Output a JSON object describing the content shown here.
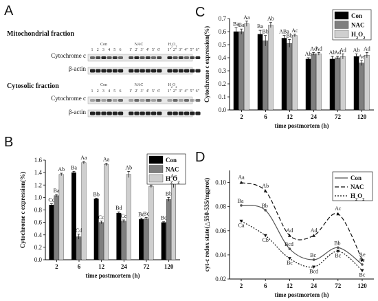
{
  "panels": {
    "a": "A",
    "b": "B",
    "c": "C",
    "d": "D"
  },
  "blot": {
    "mito_title": "Mitochondrial fraction",
    "cyto_title": "Cytosolic fraction",
    "groups": [
      "Con",
      "NAC",
      "H2O2"
    ],
    "lanes": [
      "1",
      "2",
      "3",
      "4",
      "5",
      "6",
      "1'",
      "2'",
      "3'",
      "4'",
      "5'",
      "6'",
      "1\"",
      "2\"",
      "3\"",
      "4\"",
      "5\"",
      "6\""
    ],
    "row_labels": [
      "Cytochrome c",
      "β-actin"
    ]
  },
  "chart_data": [
    {
      "id": "B",
      "type": "bar",
      "categories": [
        "2",
        "6",
        "12",
        "24",
        "72",
        "120"
      ],
      "xlabel": "time postmortem (h)",
      "ylabel": "Cytochrome c expression(%)",
      "ylim": [
        0,
        1.6
      ],
      "yticks": [
        "0.0",
        "0.2",
        "0.4",
        "0.6",
        "0.8",
        "1.0",
        "1.2",
        "1.4",
        "1.6"
      ],
      "legend": "top-right",
      "series": [
        {
          "name": "Con",
          "color": "#000000",
          "values": [
            0.88,
            1.4,
            0.98,
            0.75,
            0.65,
            0.6
          ],
          "err": [
            0.02,
            0.02,
            0.01,
            0.02,
            0.02,
            0.01
          ],
          "labels": [
            "Cc",
            "Ba",
            "Bb",
            "Bd",
            "Bc",
            "Bc"
          ]
        },
        {
          "name": "NAC",
          "color": "#7f7f7f",
          "values": [
            1.03,
            0.37,
            0.6,
            0.62,
            0.66,
            0.97
          ],
          "err": [
            0.02,
            0.04,
            0.02,
            0.02,
            0.02,
            0.03
          ],
          "labels": [
            "Ba",
            "Cd",
            "Cc",
            "Cc",
            "Bc",
            "Bb"
          ]
        },
        {
          "name": "H2O2",
          "color": "#cfcfcf",
          "values": [
            1.37,
            1.56,
            1.53,
            1.37,
            1.18,
            1.22
          ],
          "err": [
            0.02,
            0.02,
            0.02,
            0.05,
            0.02,
            0.06
          ],
          "labels": [
            "Ab",
            "Aa",
            "Aa",
            "Ab",
            "",
            ""
          ]
        }
      ],
      "extra_labels": [
        "Ac"
      ]
    },
    {
      "id": "C",
      "type": "bar",
      "categories": [
        "2",
        "6",
        "12",
        "24",
        "72",
        "120"
      ],
      "xlabel": "time postmortem (h)",
      "ylabel": "Cytochrome c expression(%)",
      "ylim": [
        0,
        0.7
      ],
      "yticks": [
        "0.0",
        "0.1",
        "0.2",
        "0.3",
        "0.4",
        "0.5",
        "0.6",
        "0.7"
      ],
      "legend": "top-right",
      "series": [
        {
          "name": "Con",
          "color": "#000000",
          "values": [
            0.6,
            0.58,
            0.55,
            0.39,
            0.39,
            0.41
          ],
          "err": [
            0.03,
            0.03,
            0.02,
            0.01,
            0.02,
            0.02
          ],
          "labels": [
            "Ba",
            "Ba",
            "ABa",
            "Ab",
            "Ab",
            "Ab"
          ]
        },
        {
          "name": "NAC",
          "color": "#7f7f7f",
          "values": [
            0.6,
            0.53,
            0.51,
            0.43,
            0.4,
            0.36
          ],
          "err": [
            0.02,
            0.04,
            0.03,
            0.01,
            0.01,
            0.02
          ],
          "labels": [
            "Ba",
            "Bb",
            "Bb",
            "Ad",
            "Ad",
            "Ae"
          ]
        },
        {
          "name": "H2O2",
          "color": "#cfcfcf",
          "values": [
            0.66,
            0.65,
            0.57,
            0.43,
            0.41,
            0.42
          ],
          "err": [
            0.02,
            0.02,
            0.01,
            0.01,
            0.02,
            0.02
          ],
          "labels": [
            "Aa",
            "Ab",
            "Ac",
            "Ad",
            "Ad",
            "Ad"
          ]
        }
      ]
    },
    {
      "id": "D",
      "type": "line",
      "x": [
        "2",
        "6",
        "12",
        "24",
        "72",
        "120"
      ],
      "xlabel": "time postmortem (h)",
      "ylabel": "cyt-c redox state(△550-535/mgprot)",
      "ylim": [
        0.02,
        0.11
      ],
      "yticks": [
        "0.02",
        "0.04",
        "0.06",
        "0.08",
        "0.10"
      ],
      "legend": "top-right",
      "series": [
        {
          "name": "Con",
          "color": "#555555",
          "dash": "none",
          "values": [
            0.081,
            0.077,
            0.045,
            0.036,
            0.046,
            0.032
          ],
          "labels": [
            "Ba",
            "Bb",
            "Bcd",
            "Bc",
            "Bb",
            "Ae"
          ]
        },
        {
          "name": "NAC",
          "color": "#111111",
          "dash": "6,3",
          "values": [
            0.1,
            0.093,
            0.056,
            0.056,
            0.074,
            0.036
          ],
          "labels": [
            "Aa",
            "Ab",
            "Ad",
            "Ad",
            "Ac",
            "Ae"
          ]
        },
        {
          "name": "H2O2",
          "color": "#111111",
          "dash": "2,2",
          "values": [
            0.068,
            0.056,
            0.037,
            0.03,
            0.043,
            0.027
          ],
          "labels": [
            "Ca",
            "Cb",
            "Bc",
            "Bcd",
            "Bc",
            "Bc"
          ]
        }
      ]
    }
  ]
}
